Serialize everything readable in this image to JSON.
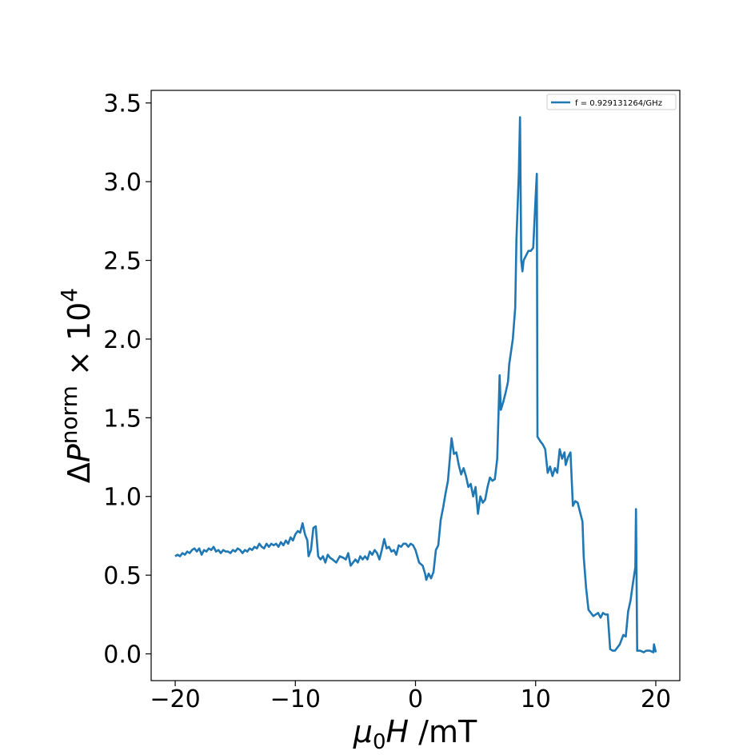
{
  "chart_data": {
    "type": "line",
    "xlabel": {
      "main": "μ",
      "sub": "0",
      "italic": "H",
      "rest": " /mT"
    },
    "ylabel": {
      "delta": "Δ",
      "p": "P",
      "sup": "norm",
      "mult": " × 10",
      "exp": "4"
    },
    "xlim": [
      -22,
      22
    ],
    "ylim": [
      -0.17,
      3.58
    ],
    "xticks": [
      -20,
      -10,
      0,
      10,
      20
    ],
    "xtick_labels": [
      "−20",
      "−10",
      "0",
      "10",
      "20"
    ],
    "yticks": [
      0.0,
      0.5,
      1.0,
      1.5,
      2.0,
      2.5,
      3.0,
      3.5
    ],
    "ytick_labels": [
      "0.0",
      "0.5",
      "1.0",
      "1.5",
      "2.0",
      "2.5",
      "3.0",
      "3.5"
    ],
    "grid": false,
    "legend_position": "top-right",
    "series": [
      {
        "name": "f = 0.929131264/GHz",
        "color": "#1f77b4",
        "points": [
          [
            -20.0,
            0.62
          ],
          [
            -19.8,
            0.63
          ],
          [
            -19.6,
            0.62
          ],
          [
            -19.4,
            0.64
          ],
          [
            -19.2,
            0.63
          ],
          [
            -19.0,
            0.65
          ],
          [
            -18.8,
            0.64
          ],
          [
            -18.6,
            0.66
          ],
          [
            -18.4,
            0.67
          ],
          [
            -18.2,
            0.65
          ],
          [
            -18.0,
            0.67
          ],
          [
            -17.8,
            0.63
          ],
          [
            -17.6,
            0.66
          ],
          [
            -17.4,
            0.65
          ],
          [
            -17.2,
            0.67
          ],
          [
            -17.0,
            0.66
          ],
          [
            -16.8,
            0.68
          ],
          [
            -16.6,
            0.65
          ],
          [
            -16.4,
            0.66
          ],
          [
            -16.2,
            0.64
          ],
          [
            -16.0,
            0.66
          ],
          [
            -15.8,
            0.65
          ],
          [
            -15.6,
            0.65
          ],
          [
            -15.4,
            0.64
          ],
          [
            -15.2,
            0.66
          ],
          [
            -15.0,
            0.65
          ],
          [
            -14.8,
            0.67
          ],
          [
            -14.6,
            0.66
          ],
          [
            -14.4,
            0.64
          ],
          [
            -14.2,
            0.66
          ],
          [
            -14.0,
            0.65
          ],
          [
            -13.8,
            0.67
          ],
          [
            -13.6,
            0.66
          ],
          [
            -13.4,
            0.68
          ],
          [
            -13.2,
            0.67
          ],
          [
            -13.0,
            0.7
          ],
          [
            -12.8,
            0.68
          ],
          [
            -12.6,
            0.67
          ],
          [
            -12.4,
            0.7
          ],
          [
            -12.2,
            0.68
          ],
          [
            -12.0,
            0.7
          ],
          [
            -11.8,
            0.69
          ],
          [
            -11.6,
            0.7
          ],
          [
            -11.4,
            0.68
          ],
          [
            -11.2,
            0.71
          ],
          [
            -11.0,
            0.69
          ],
          [
            -10.8,
            0.72
          ],
          [
            -10.6,
            0.7
          ],
          [
            -10.4,
            0.74
          ],
          [
            -10.2,
            0.72
          ],
          [
            -10.0,
            0.76
          ],
          [
            -9.8,
            0.78
          ],
          [
            -9.6,
            0.77
          ],
          [
            -9.4,
            0.83
          ],
          [
            -9.2,
            0.76
          ],
          [
            -9.0,
            0.72
          ],
          [
            -8.9,
            0.62
          ],
          [
            -8.7,
            0.66
          ],
          [
            -8.5,
            0.8
          ],
          [
            -8.3,
            0.81
          ],
          [
            -8.1,
            0.62
          ],
          [
            -7.9,
            0.6
          ],
          [
            -7.7,
            0.62
          ],
          [
            -7.5,
            0.58
          ],
          [
            -7.3,
            0.63
          ],
          [
            -7.1,
            0.61
          ],
          [
            -6.9,
            0.6
          ],
          [
            -6.6,
            0.58
          ],
          [
            -6.3,
            0.62
          ],
          [
            -6.0,
            0.61
          ],
          [
            -5.8,
            0.6
          ],
          [
            -5.6,
            0.64
          ],
          [
            -5.4,
            0.56
          ],
          [
            -5.2,
            0.58
          ],
          [
            -5.0,
            0.6
          ],
          [
            -4.8,
            0.58
          ],
          [
            -4.6,
            0.62
          ],
          [
            -4.4,
            0.6
          ],
          [
            -4.2,
            0.62
          ],
          [
            -4.0,
            0.6
          ],
          [
            -3.8,
            0.65
          ],
          [
            -3.6,
            0.63
          ],
          [
            -3.4,
            0.66
          ],
          [
            -3.2,
            0.64
          ],
          [
            -3.0,
            0.6
          ],
          [
            -2.8,
            0.66
          ],
          [
            -2.6,
            0.73
          ],
          [
            -2.4,
            0.67
          ],
          [
            -2.2,
            0.68
          ],
          [
            -2.0,
            0.65
          ],
          [
            -1.8,
            0.66
          ],
          [
            -1.6,
            0.63
          ],
          [
            -1.4,
            0.69
          ],
          [
            -1.2,
            0.68
          ],
          [
            -1.0,
            0.7
          ],
          [
            -0.8,
            0.7
          ],
          [
            -0.6,
            0.68
          ],
          [
            -0.4,
            0.7
          ],
          [
            -0.2,
            0.69
          ],
          [
            0.0,
            0.66
          ],
          [
            0.3,
            0.58
          ],
          [
            0.6,
            0.56
          ],
          [
            0.8,
            0.51
          ],
          [
            0.9,
            0.47
          ],
          [
            1.1,
            0.51
          ],
          [
            1.3,
            0.48
          ],
          [
            1.5,
            0.52
          ],
          [
            1.7,
            0.66
          ],
          [
            1.9,
            0.69
          ],
          [
            2.1,
            0.85
          ],
          [
            2.3,
            0.93
          ],
          [
            2.5,
            1.02
          ],
          [
            2.7,
            1.1
          ],
          [
            2.8,
            1.19
          ],
          [
            3.0,
            1.37
          ],
          [
            3.2,
            1.27
          ],
          [
            3.4,
            1.28
          ],
          [
            3.6,
            1.2
          ],
          [
            3.8,
            1.14
          ],
          [
            4.0,
            1.18
          ],
          [
            4.2,
            1.13
          ],
          [
            4.4,
            1.06
          ],
          [
            4.6,
            1.08
          ],
          [
            4.8,
            1.0
          ],
          [
            5.0,
            1.06
          ],
          [
            5.2,
            0.89
          ],
          [
            5.4,
            1.0
          ],
          [
            5.6,
            0.96
          ],
          [
            5.8,
            0.98
          ],
          [
            6.0,
            1.06
          ],
          [
            6.2,
            1.12
          ],
          [
            6.4,
            1.1
          ],
          [
            6.6,
            1.11
          ],
          [
            6.8,
            1.24
          ],
          [
            7.0,
            1.77
          ],
          [
            7.1,
            1.55
          ],
          [
            7.3,
            1.6
          ],
          [
            7.5,
            1.66
          ],
          [
            7.7,
            1.73
          ],
          [
            7.8,
            1.84
          ],
          [
            8.1,
            2.0
          ],
          [
            8.3,
            2.2
          ],
          [
            8.4,
            2.63
          ],
          [
            8.6,
            3.05
          ],
          [
            8.7,
            3.41
          ],
          [
            8.8,
            2.5
          ],
          [
            8.9,
            2.43
          ],
          [
            9.0,
            2.5
          ],
          [
            9.2,
            2.53
          ],
          [
            9.4,
            2.56
          ],
          [
            9.6,
            2.56
          ],
          [
            9.8,
            2.58
          ],
          [
            10.0,
            2.9
          ],
          [
            10.1,
            3.05
          ],
          [
            10.15,
            1.38
          ],
          [
            10.4,
            1.35
          ],
          [
            10.6,
            1.33
          ],
          [
            10.8,
            1.3
          ],
          [
            11.0,
            1.15
          ],
          [
            11.2,
            1.19
          ],
          [
            11.4,
            1.13
          ],
          [
            11.6,
            1.18
          ],
          [
            11.8,
            1.15
          ],
          [
            12.0,
            1.3
          ],
          [
            12.2,
            1.24
          ],
          [
            12.4,
            1.28
          ],
          [
            12.5,
            1.2
          ],
          [
            12.7,
            1.25
          ],
          [
            12.9,
            1.28
          ],
          [
            13.1,
            0.94
          ],
          [
            13.3,
            0.97
          ],
          [
            13.5,
            0.96
          ],
          [
            13.7,
            0.9
          ],
          [
            13.9,
            0.84
          ],
          [
            14.0,
            0.62
          ],
          [
            14.2,
            0.42
          ],
          [
            14.4,
            0.28
          ],
          [
            14.6,
            0.26
          ],
          [
            14.8,
            0.24
          ],
          [
            15.0,
            0.25
          ],
          [
            15.2,
            0.26
          ],
          [
            15.4,
            0.23
          ],
          [
            15.6,
            0.26
          ],
          [
            15.8,
            0.25
          ],
          [
            16.0,
            0.25
          ],
          [
            16.2,
            0.03
          ],
          [
            16.4,
            0.02
          ],
          [
            16.6,
            0.02
          ],
          [
            16.8,
            0.04
          ],
          [
            17.0,
            0.06
          ],
          [
            17.3,
            0.12
          ],
          [
            17.5,
            0.11
          ],
          [
            17.7,
            0.27
          ],
          [
            17.9,
            0.34
          ],
          [
            18.1,
            0.45
          ],
          [
            18.3,
            0.55
          ],
          [
            18.35,
            0.92
          ],
          [
            18.45,
            0.02
          ],
          [
            18.7,
            0.02
          ],
          [
            19.0,
            0.01
          ],
          [
            19.2,
            0.02
          ],
          [
            19.5,
            0.02
          ],
          [
            19.8,
            0.01
          ],
          [
            19.85,
            0.06
          ],
          [
            20.0,
            0.01
          ]
        ]
      }
    ]
  }
}
